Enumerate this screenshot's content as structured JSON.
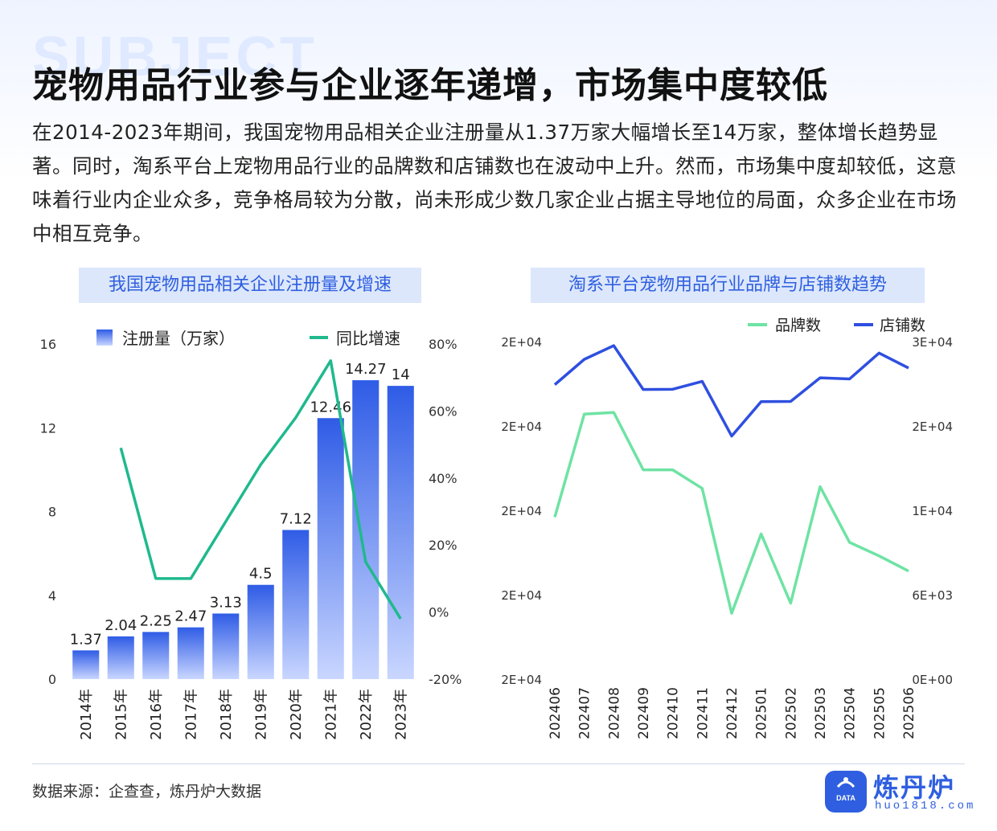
{
  "header": {
    "title": "宠物用品行业参与企业逐年递增，市场集中度较低",
    "intro": "在2014-2023年期间，我国宠物用品相关企业注册量从1.37万家大幅增长至14万家，整体增长趋势显著。同时，淘系平台上宠物用品行业的品牌数和店铺数也在波动中上升。然而，市场集中度却较低，这意味着行业内企业众多，竞争格局较为分散，尚未形成少数几家企业占据主导地位的局面，众多企业在市场中相互竞争。"
  },
  "chart_data": [
    {
      "type": "bar",
      "title": "我国宠物用品相关企业注册量及增速",
      "categories": [
        "2014年",
        "2015年",
        "2016年",
        "2017年",
        "2018年",
        "2019年",
        "2020年",
        "2021年",
        "2022年",
        "2023年"
      ],
      "series": [
        {
          "name": "注册量（万家）",
          "type": "bar",
          "axis": "left",
          "values": [
            1.37,
            2.04,
            2.25,
            2.47,
            3.13,
            4.5,
            7.12,
            12.46,
            14.27,
            14
          ],
          "labels": [
            "1.37",
            "2.04",
            "2.25",
            "2.47",
            "3.13",
            "4.5",
            "7.12",
            "12.46",
            "14.27",
            "14"
          ]
        },
        {
          "name": "同比增速",
          "type": "line",
          "axis": "right",
          "values": [
            null,
            49,
            10,
            10,
            27,
            44,
            58,
            75,
            15,
            -2
          ]
        }
      ],
      "ylim_left": [
        0,
        16
      ],
      "yticks_left": [
        "0",
        "4",
        "8",
        "12",
        "16"
      ],
      "ylim_right": [
        -20,
        80
      ],
      "yticks_right": [
        "-20%",
        "0%",
        "20%",
        "40%",
        "60%",
        "80%"
      ],
      "legend": "top",
      "colors": {
        "bar": "#2f5ce6",
        "line": "#1fb98d"
      }
    },
    {
      "type": "line",
      "title": "淘系平台宠物用品行业品牌与店铺数趋势",
      "categories": [
        "202406",
        "202407",
        "202408",
        "202409",
        "202410",
        "202411",
        "202412",
        "202501",
        "202502",
        "202503",
        "202504",
        "202505",
        "202506"
      ],
      "series": [
        {
          "name": "品牌数",
          "axis": "left",
          "color": "#6ee3a3",
          "values": [
            0.48,
            0.785,
            0.79,
            0.62,
            0.62,
            0.565,
            0.195,
            0.43,
            0.225,
            0.57,
            0.405,
            0.365,
            0.32
          ]
        },
        {
          "name": "店铺数",
          "axis": "right",
          "color": "#2f4fe0",
          "values": [
            26170,
            28420,
            29640,
            25740,
            25760,
            26460,
            21600,
            24660,
            24680,
            26780,
            26680,
            28980,
            27650
          ]
        }
      ],
      "yticks_left": [
        "2E+04",
        "2E+04",
        "2E+04",
        "2E+04",
        "2E+04"
      ],
      "ylim_right": [
        0,
        30000
      ],
      "yticks_right": [
        "0E+00",
        "6E+03",
        "1E+04",
        "2E+04",
        "3E+04"
      ],
      "legend": "top-right"
    }
  ],
  "footer": {
    "source": "数据来源：企查查，炼丹炉大数据",
    "logo_name": "炼丹炉",
    "logo_url": "huo1818.com",
    "logo_badge": "DATA"
  }
}
